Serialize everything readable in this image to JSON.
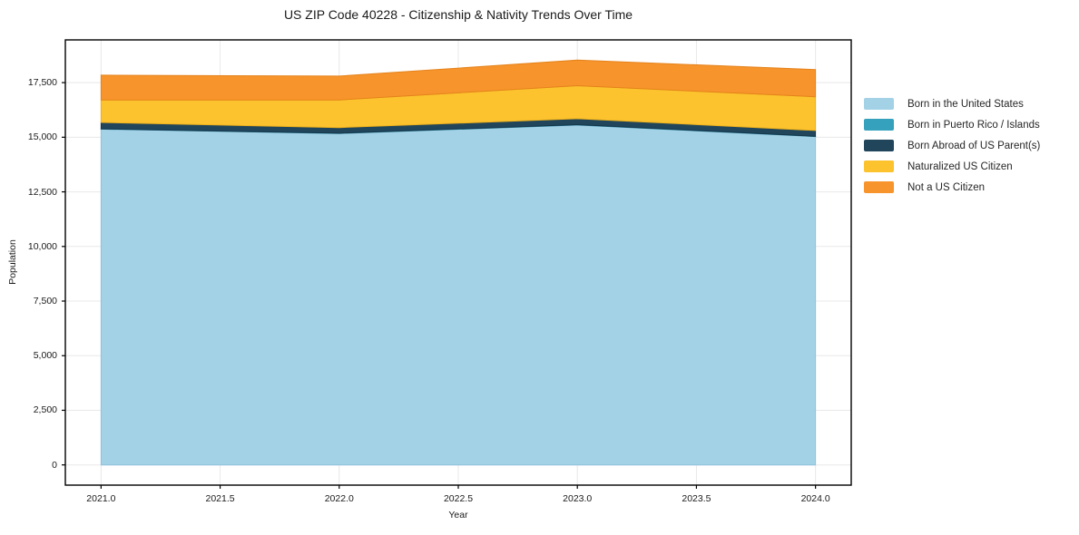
{
  "chart_data": {
    "type": "area",
    "stacked": true,
    "title": "US ZIP Code 40228 - Citizenship & Nativity Trends Over Time",
    "xlabel": "Year",
    "ylabel": "Population",
    "x": [
      2021,
      2022,
      2023,
      2024
    ],
    "series": [
      {
        "name": "Born in the United States",
        "color": "#a3d1e6",
        "edge_color": "#8fc3dc",
        "values": [
          15370,
          15170,
          15560,
          15030
        ]
      },
      {
        "name": "Born in Puerto Rico / Islands",
        "color": "#35a1bd",
        "edge_color": "#2c8aa3",
        "values": [
          15,
          15,
          15,
          15
        ]
      },
      {
        "name": "Born Abroad of US Parent(s)",
        "color": "#21465c",
        "edge_color": "#16374a",
        "values": [
          295,
          255,
          275,
          265
        ]
      },
      {
        "name": "Naturalized US Citizen",
        "color": "#fcc32f",
        "edge_color": "#eeb11c",
        "values": [
          1030,
          1270,
          1510,
          1545
        ]
      },
      {
        "name": "Not a US Citizen",
        "color": "#f7952c",
        "edge_color": "#e5821b",
        "values": [
          1130,
          1090,
          1170,
          1245
        ]
      }
    ],
    "totals": [
      17840,
      17800,
      18530,
      18100
    ],
    "x_ticks": {
      "values": [
        2021.0,
        2021.5,
        2022.0,
        2022.5,
        2023.0,
        2023.5,
        2024.0
      ],
      "labels": [
        "2021.0",
        "2021.5",
        "2022.0",
        "2022.5",
        "2023.0",
        "2023.5",
        "2024.0"
      ]
    },
    "y_ticks": {
      "values": [
        0,
        2500,
        5000,
        7500,
        10000,
        12500,
        15000,
        17500
      ],
      "labels": [
        "0",
        "2,500",
        "5,000",
        "7,500",
        "10,000",
        "12,500",
        "15,000",
        "17,500"
      ]
    },
    "xlim": [
      2020.85,
      2024.15
    ],
    "ylim": [
      -926,
      19456
    ],
    "grid": true,
    "grid_color": "#e8e8e8",
    "spine_color": "#000000",
    "legend_position": "right"
  }
}
